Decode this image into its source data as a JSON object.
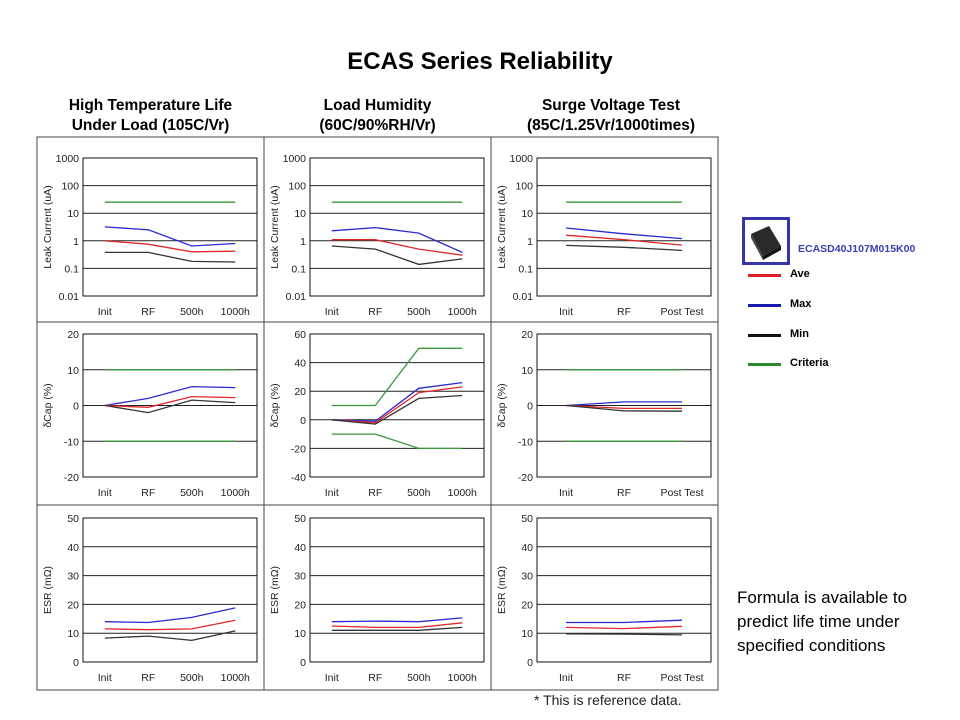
{
  "title": "ECAS Series Reliability",
  "columns": [
    {
      "line1": "High Temperature Life",
      "line2": "Under Load (105C/Vr)"
    },
    {
      "line1": "Load Humidity",
      "line2": "(60C/90%RH/Vr)"
    },
    {
      "line1": "Surge Voltage Test",
      "line2": "(85C/1.25Vr/1000times)"
    }
  ],
  "legend": {
    "part_number": "ECASD40J107M015K00",
    "items": [
      {
        "label": "Ave",
        "color": "#e02020"
      },
      {
        "label": "Max",
        "color": "#1a1ab0"
      },
      {
        "label": "Min",
        "color": "#111111"
      },
      {
        "label": "Criteria",
        "color": "#2a8a2a"
      }
    ]
  },
  "formula_lines": [
    "Formula is available to",
    "predict life time under",
    "specified conditions"
  ],
  "note": "* This is reference data.",
  "chart_data": [
    {
      "type": "line",
      "row": 0,
      "col": 0,
      "scale": "log",
      "ylabel": "Leak Current (uA)",
      "ylim": [
        0.01,
        1000
      ],
      "yticks": [
        "1000",
        "100",
        "10",
        "1",
        "0.1",
        "0.01"
      ],
      "categories": [
        "Init",
        "RF",
        "500h",
        "1000h"
      ],
      "series": [
        {
          "name": "Max",
          "values": [
            3.2,
            2.5,
            0.65,
            0.8
          ]
        },
        {
          "name": "Ave",
          "values": [
            1.0,
            0.75,
            0.4,
            0.42
          ]
        },
        {
          "name": "Min",
          "values": [
            0.38,
            0.38,
            0.18,
            0.17
          ]
        },
        {
          "name": "Criteria",
          "values": [
            25,
            25,
            25,
            25
          ]
        }
      ]
    },
    {
      "type": "line",
      "row": 0,
      "col": 1,
      "scale": "log",
      "ylabel": "Leak Current (uA)",
      "ylim": [
        0.01,
        1000
      ],
      "yticks": [
        "1000",
        "100",
        "10",
        "1",
        "0.1",
        "0.01"
      ],
      "categories": [
        "Init",
        "RF",
        "500h",
        "1000h"
      ],
      "series": [
        {
          "name": "Max",
          "values": [
            2.3,
            3.0,
            1.9,
            0.38
          ]
        },
        {
          "name": "Ave",
          "values": [
            1.1,
            1.1,
            0.5,
            0.3
          ]
        },
        {
          "name": "Min",
          "values": [
            0.65,
            0.5,
            0.14,
            0.22
          ]
        },
        {
          "name": "Criteria",
          "values": [
            25,
            25,
            25,
            25
          ]
        }
      ]
    },
    {
      "type": "line",
      "row": 0,
      "col": 2,
      "scale": "log",
      "ylabel": "Leak Current (uA)",
      "ylim": [
        0.01,
        1000
      ],
      "yticks": [
        "1000",
        "100",
        "10",
        "1",
        "0.1",
        "0.01"
      ],
      "categories": [
        "Init",
        "RF",
        "Post Test"
      ],
      "series": [
        {
          "name": "Max",
          "values": [
            2.9,
            1.8,
            1.2
          ]
        },
        {
          "name": "Ave",
          "values": [
            1.6,
            1.1,
            0.7
          ]
        },
        {
          "name": "Min",
          "values": [
            0.68,
            0.58,
            0.45
          ]
        },
        {
          "name": "Criteria",
          "values": [
            25,
            25,
            25
          ]
        }
      ]
    },
    {
      "type": "line",
      "row": 1,
      "col": 0,
      "scale": "linear",
      "ylabel": "δCap (%)",
      "ylim": [
        -20,
        20
      ],
      "yticks": [
        "20",
        "10",
        "0",
        "-10",
        "-20"
      ],
      "categories": [
        "Init",
        "RF",
        "500h",
        "1000h"
      ],
      "series": [
        {
          "name": "Max",
          "values": [
            0,
            2,
            5.3,
            5
          ]
        },
        {
          "name": "Ave",
          "values": [
            0,
            -0.5,
            2.5,
            2.2
          ]
        },
        {
          "name": "Min",
          "values": [
            0,
            -2,
            1.5,
            0.8
          ]
        },
        {
          "name": "Criteria",
          "values": [
            10,
            10,
            10,
            10
          ]
        },
        {
          "name": "Criteria",
          "values": [
            -10,
            -10,
            -10,
            -10
          ]
        }
      ]
    },
    {
      "type": "line",
      "row": 1,
      "col": 1,
      "scale": "linear",
      "ylabel": "δCap (%)",
      "ylim": [
        -40,
        60
      ],
      "yticks": [
        "60",
        "40",
        "20",
        "0",
        "-20",
        "-40"
      ],
      "categories": [
        "Init",
        "RF",
        "500h",
        "1000h"
      ],
      "series": [
        {
          "name": "Max",
          "values": [
            0,
            -1,
            22,
            26
          ]
        },
        {
          "name": "Ave",
          "values": [
            0,
            -2,
            19,
            23
          ]
        },
        {
          "name": "Min",
          "values": [
            0,
            -3,
            15,
            17
          ]
        },
        {
          "name": "Criteria",
          "values": [
            10,
            10,
            50,
            50
          ]
        },
        {
          "name": "Criteria",
          "values": [
            -10,
            -10,
            -20,
            -20
          ]
        }
      ]
    },
    {
      "type": "line",
      "row": 1,
      "col": 2,
      "scale": "linear",
      "ylabel": "δCap (%)",
      "ylim": [
        -20,
        20
      ],
      "yticks": [
        "20",
        "10",
        "0",
        "-10",
        "-20"
      ],
      "categories": [
        "Init",
        "RF",
        "Post Test"
      ],
      "series": [
        {
          "name": "Max",
          "values": [
            0,
            1,
            1
          ]
        },
        {
          "name": "Ave",
          "values": [
            0,
            -0.8,
            -0.8
          ]
        },
        {
          "name": "Min",
          "values": [
            0,
            -1.5,
            -1.6
          ]
        },
        {
          "name": "Criteria",
          "values": [
            10,
            10,
            10
          ]
        },
        {
          "name": "Criteria",
          "values": [
            -10,
            -10,
            -10
          ]
        }
      ]
    },
    {
      "type": "line",
      "row": 2,
      "col": 0,
      "scale": "linear",
      "ylabel": "ESR (mΩ)",
      "ylim": [
        0,
        50
      ],
      "yticks": [
        "50",
        "40",
        "30",
        "20",
        "10",
        "0"
      ],
      "categories": [
        "Init",
        "RF",
        "500h",
        "1000h"
      ],
      "series": [
        {
          "name": "Max",
          "values": [
            14,
            13.7,
            15.5,
            18.8
          ]
        },
        {
          "name": "Ave",
          "values": [
            11.5,
            11.2,
            11.5,
            14.5
          ]
        },
        {
          "name": "Min",
          "values": [
            8.3,
            9,
            7.5,
            10.8
          ]
        }
      ]
    },
    {
      "type": "line",
      "row": 2,
      "col": 1,
      "scale": "linear",
      "ylabel": "ESR (mΩ)",
      "ylim": [
        0,
        50
      ],
      "yticks": [
        "50",
        "40",
        "30",
        "20",
        "10",
        "0"
      ],
      "categories": [
        "Init",
        "RF",
        "500h",
        "1000h"
      ],
      "series": [
        {
          "name": "Max",
          "values": [
            14,
            14.2,
            14,
            15.3
          ]
        },
        {
          "name": "Ave",
          "values": [
            12.5,
            12,
            12,
            13.6
          ]
        },
        {
          "name": "Min",
          "values": [
            11,
            11,
            11,
            12
          ]
        }
      ]
    },
    {
      "type": "line",
      "row": 2,
      "col": 2,
      "scale": "linear",
      "ylabel": "ESR (mΩ)",
      "ylim": [
        0,
        50
      ],
      "yticks": [
        "50",
        "40",
        "30",
        "20",
        "10",
        "0"
      ],
      "categories": [
        "Init",
        "RF",
        "Post Test"
      ],
      "series": [
        {
          "name": "Max",
          "values": [
            13.7,
            13.7,
            14.5
          ]
        },
        {
          "name": "Ave",
          "values": [
            12,
            11.6,
            12.4
          ]
        },
        {
          "name": "Min",
          "values": [
            9.8,
            9.7,
            9.4
          ]
        }
      ]
    }
  ]
}
